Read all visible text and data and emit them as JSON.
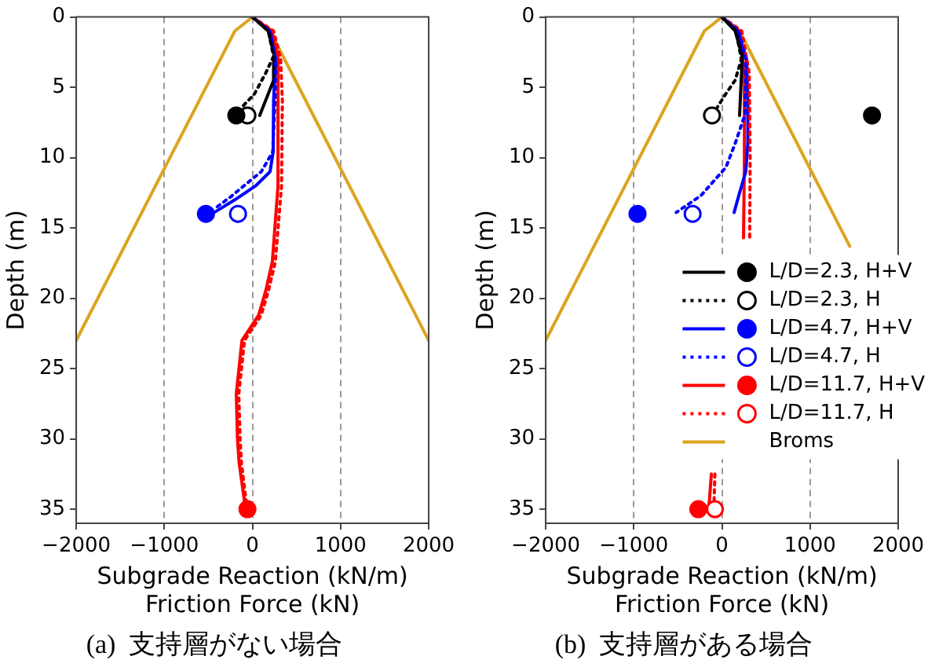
{
  "chart_data": [
    {
      "type": "line",
      "title": "(a)  支持層がない場合",
      "xlabel": "Subgrade Reaction (kN/m)\nFriction Force (kN)",
      "ylabel": "Depth (m)",
      "xlim": [
        -2000,
        2000
      ],
      "xticks": [
        -2000,
        -1000,
        0,
        1000,
        2000
      ],
      "ylim": [
        36,
        0
      ],
      "yticks": [
        0,
        5,
        10,
        15,
        20,
        25,
        30,
        35
      ],
      "grid": "x",
      "legend": false,
      "series": [
        {
          "type": "scatter",
          "color": "#000000",
          "marker": "circle",
          "x": [
            -183
          ],
          "values": [
            7
          ]
        },
        {
          "type": "scatter",
          "color": "#000000",
          "colors": [
            "#ffffff"
          ],
          "marker": "circle",
          "x": [
            -57
          ],
          "values": [
            7
          ]
        },
        {
          "type": "scatter",
          "color": "#0000ff",
          "marker": "circle",
          "x": [
            -528
          ],
          "values": [
            14
          ]
        },
        {
          "type": "scatter",
          "color": "#0000ff",
          "colors": [
            "#ffffff"
          ],
          "marker": "circle",
          "x": [
            -164
          ],
          "values": [
            14
          ]
        },
        {
          "type": "scatter",
          "color": "#ff0000",
          "colors": [
            "#ffffff"
          ],
          "marker": "circle",
          "x": [
            null
          ],
          "values": [
            null
          ]
        },
        {
          "type": "scatter",
          "color": "#ff0000",
          "marker": "circle",
          "x": [
            -57
          ],
          "values": [
            35
          ]
        },
        {
          "type": "line",
          "color": "#000000",
          "line_style": "solid",
          "x": [
            0,
            180,
            250,
            240,
            82
          ],
          "values": [
            0,
            1,
            2.8,
            4.5,
            7
          ]
        },
        {
          "type": "line",
          "color": "#000000",
          "line_style": "dotted",
          "x": [
            0,
            180,
            240,
            150,
            20,
            -119
          ],
          "values": [
            0,
            1,
            2.8,
            4,
            5.5,
            6.4
          ]
        },
        {
          "type": "line",
          "color": "#0000ff",
          "line_style": "solid",
          "x": [
            0,
            200,
            260,
            240,
            235,
            200,
            38,
            -200,
            -434
          ],
          "values": [
            0,
            1,
            3,
            6,
            9.6,
            11,
            12,
            13,
            13.9
          ]
        },
        {
          "type": "line",
          "color": "#0000ff",
          "line_style": "dotted",
          "x": [
            0,
            200,
            265,
            258,
            230,
            100,
            -57,
            -250,
            -402
          ],
          "values": [
            0,
            1,
            3,
            5.6,
            9.6,
            11,
            11.8,
            12.8,
            13.5
          ]
        },
        {
          "type": "line",
          "color": "#ff0000",
          "line_style": "dotted",
          "x": [
            0,
            240,
            320,
            340,
            330,
            260,
            180,
            100,
            -90,
            -155,
            -140,
            -125,
            -70
          ],
          "values": [
            0,
            1,
            3,
            6,
            12,
            17.4,
            19.5,
            21.2,
            23,
            26.8,
            30,
            31.7,
            34.5
          ]
        },
        {
          "type": "line",
          "color": "#ff0000",
          "line_style": "solid",
          "x": [
            0,
            220,
            290,
            290,
            226,
            150,
            70,
            -119,
            -183,
            -170,
            -151,
            -89
          ],
          "values": [
            0,
            1,
            3,
            12,
            17.4,
            19.5,
            21.2,
            23,
            26.8,
            30,
            31.7,
            34.5
          ]
        },
        {
          "type": "line",
          "color": "#daa520",
          "line_style": "solid",
          "x": [
            -2000,
            -200,
            0,
            200,
            2000
          ],
          "values": [
            23,
            1,
            0,
            1,
            23
          ]
        }
      ]
    },
    {
      "type": "line",
      "title": "(b)  支持層がある場合",
      "xlabel": "Subgrade Reaction (kN/m)\nFriction Force (kN)",
      "ylabel": "Depth (m)",
      "xlim": [
        -2000,
        2000
      ],
      "xticks": [
        -2000,
        -1000,
        0,
        1000,
        2000
      ],
      "ylim": [
        36,
        0
      ],
      "yticks": [
        0,
        5,
        10,
        15,
        20,
        25,
        30,
        35
      ],
      "grid": "x",
      "legend": "right",
      "series": [
        {
          "type": "line",
          "name": "L/D=2.3, H+V",
          "color": "#000000",
          "line_style": "solid",
          "x": [
            0,
            150,
            231,
            215,
            200
          ],
          "values": [
            0,
            1,
            2.8,
            5,
            7
          ]
        },
        {
          "type": "scatter",
          "color": "#000000",
          "marker": "circle",
          "x": [
            1703
          ],
          "values": [
            7
          ]
        },
        {
          "type": "line",
          "name": "L/D=2.3, H",
          "color": "#000000",
          "line_style": "dotted",
          "x": [
            0,
            160,
            220,
            150,
            40,
            -50
          ],
          "values": [
            0,
            1,
            3,
            4.5,
            5.5,
            6.4
          ]
        },
        {
          "type": "scatter",
          "color": "#000000",
          "colors": [
            "#ffffff"
          ],
          "marker": "circle",
          "x": [
            -113
          ],
          "values": [
            7
          ]
        },
        {
          "type": "line",
          "name": "L/D=4.7, H+V",
          "color": "#0000ff",
          "line_style": "solid",
          "x": [
            0,
            180,
            280,
            294,
            294,
            270,
            200,
            138
          ],
          "values": [
            0,
            1,
            3,
            6,
            9,
            11,
            12.5,
            13.9
          ]
        },
        {
          "type": "scatter",
          "color": "#0000ff",
          "marker": "circle",
          "x": [
            -958
          ],
          "values": [
            14
          ]
        },
        {
          "type": "line",
          "name": "L/D=4.7, H",
          "color": "#0000ff",
          "line_style": "dotted",
          "x": [
            0,
            190,
            270,
            263,
            150,
            44,
            -238,
            -519
          ],
          "values": [
            0,
            1,
            3,
            6.9,
            9,
            10.7,
            12.7,
            13.9
          ]
        },
        {
          "type": "scatter",
          "color": "#0000ff",
          "colors": [
            "#ffffff"
          ],
          "marker": "circle",
          "x": [
            -333
          ],
          "values": [
            14
          ]
        },
        {
          "type": "line",
          "name": "L/D=11.7, H+V",
          "color": "#ff0000",
          "line_style": "solid",
          "x": [
            0,
            200,
            255,
            255,
            245,
            null,
            -120,
            -145
          ],
          "values": [
            0,
            1,
            4,
            10,
            15.7,
            null,
            32.5,
            34.6
          ]
        },
        {
          "type": "scatter",
          "color": "#ff0000",
          "marker": "circle",
          "x": [
            -268
          ],
          "values": [
            35
          ]
        },
        {
          "type": "line",
          "name": "L/D=11.7, H",
          "color": "#ff0000",
          "line_style": "dotted",
          "x": [
            0,
            225,
            310,
            320,
            315,
            null,
            -80,
            -90
          ],
          "values": [
            0,
            1,
            4,
            10,
            15.7,
            null,
            32.5,
            34.6
          ]
        },
        {
          "type": "scatter",
          "color": "#ff0000",
          "colors": [
            "#ffffff"
          ],
          "marker": "circle",
          "x": [
            -80
          ],
          "values": [
            35
          ]
        },
        {
          "type": "line",
          "name": "Broms",
          "color": "#daa520",
          "line_style": "solid",
          "x": [
            -2000,
            -200,
            0,
            200,
            1450,
            null
          ],
          "values": [
            23,
            1,
            0,
            1,
            16.3,
            null
          ]
        }
      ]
    }
  ]
}
